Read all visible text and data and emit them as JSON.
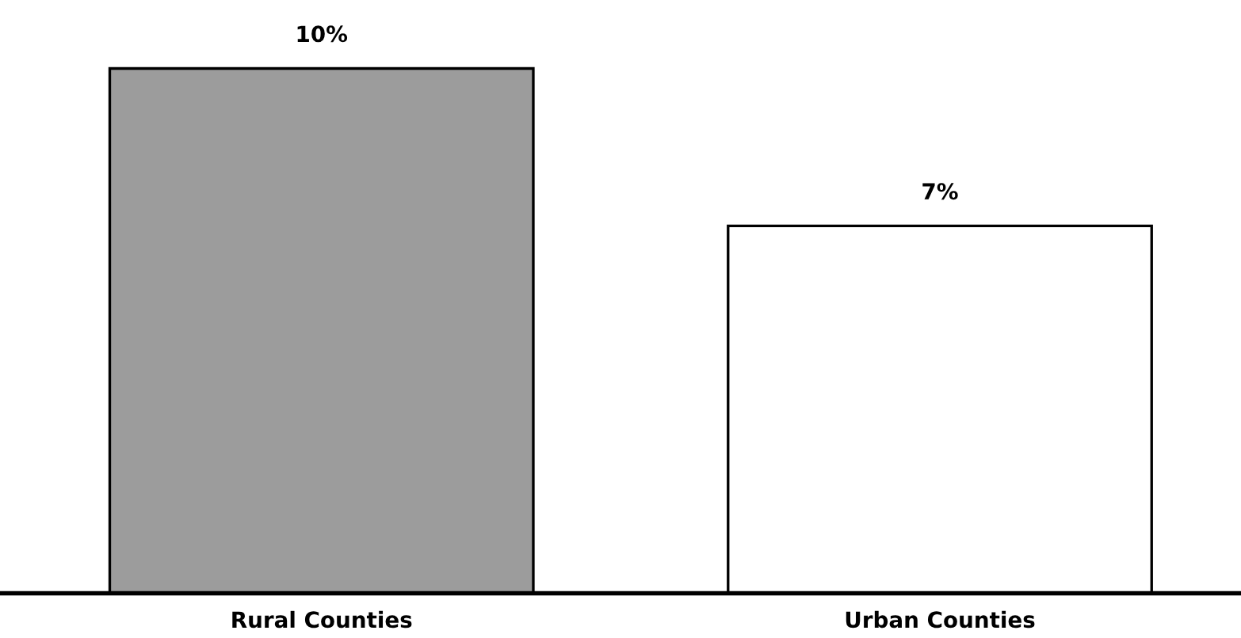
{
  "chart_data": {
    "type": "bar",
    "categories": [
      "Rural Counties",
      "Urban Counties"
    ],
    "values": [
      10,
      7
    ],
    "colors": [
      "#9c9c9c",
      "#ffffff"
    ],
    "value_labels": [
      "10%",
      "7%"
    ],
    "grid": false,
    "legend": false
  }
}
